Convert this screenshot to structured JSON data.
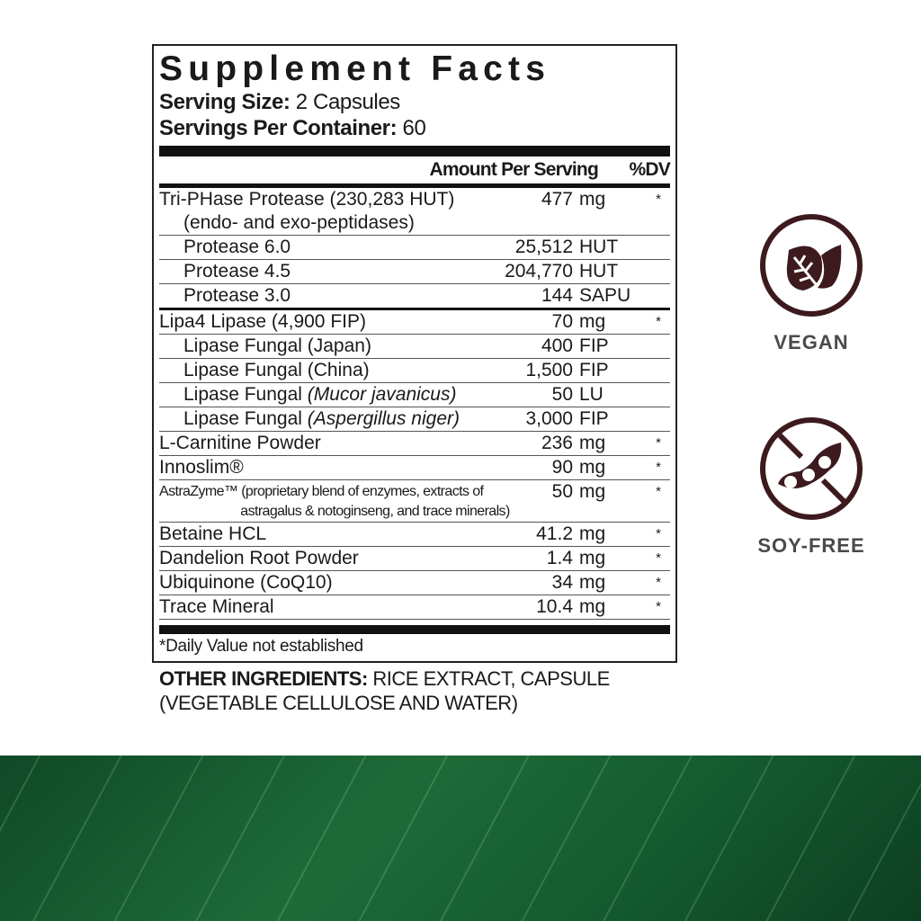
{
  "label": {
    "title": "Supplement Facts",
    "serving_size_label": "Serving Size:",
    "serving_size_value": "2 Capsules",
    "servings_per_container_label": "Servings Per Container:",
    "servings_per_container_value": "60",
    "header_amount": "Amount Per Serving",
    "header_dv": "%DV",
    "rows": [
      {
        "name": "Tri-PHase Protease (230,283 HUT)",
        "sub": "(endo- and exo-peptidases)",
        "value": "477",
        "unit": "mg",
        "dv": "*"
      },
      {
        "name": "Protease 6.0",
        "value": "25,512",
        "unit": "HUT",
        "dv": ""
      },
      {
        "name": "Protease 4.5",
        "value": "204,770",
        "unit": "HUT",
        "dv": ""
      },
      {
        "name": "Protease 3.0",
        "value": "144",
        "unit": "SAPU",
        "dv": ""
      },
      {
        "name": "Lipa4 Lipase (4,900 FIP)",
        "value": "70",
        "unit": "mg",
        "dv": "*"
      },
      {
        "name": "Lipase Fungal (Japan)",
        "value": "400",
        "unit": "FIP",
        "dv": ""
      },
      {
        "name": "Lipase Fungal (China)",
        "value": "1,500",
        "unit": "FIP",
        "dv": ""
      },
      {
        "name": "Lipase Fungal ",
        "italic": "(Mucor javanicus)",
        "value": "50",
        "unit": "LU",
        "dv": ""
      },
      {
        "name": "Lipase Fungal ",
        "italic": "(Aspergillus niger)",
        "value": "3,000",
        "unit": "FIP",
        "dv": ""
      },
      {
        "name": "L-Carnitine Powder",
        "value": "236",
        "unit": "mg",
        "dv": "*"
      },
      {
        "name": "Innoslim®",
        "value": "90",
        "unit": "mg",
        "dv": "*"
      },
      {
        "name": "AstraZyme™ (proprietary blend of enzymes, extracts of",
        "sub": "astragalus & notoginseng, and trace minerals)",
        "value": "50",
        "unit": "mg",
        "dv": "*"
      },
      {
        "name": "Betaine HCL",
        "value": "41.2",
        "unit": "mg",
        "dv": "*"
      },
      {
        "name": "Dandelion Root Powder",
        "value": "1.4",
        "unit": "mg",
        "dv": "*"
      },
      {
        "name": "Ubiquinone (CoQ10)",
        "value": "34",
        "unit": "mg",
        "dv": "*"
      },
      {
        "name": "Trace Mineral",
        "value": "10.4",
        "unit": "mg",
        "dv": "*"
      }
    ],
    "footnote": "*Daily Value not established"
  },
  "other_ingredients": {
    "label": "OTHER INGREDIENTS:",
    "text": " RICE EXTRACT, CAPSULE (VEGETABLE CELLULOSE AND WATER)"
  },
  "badges": [
    {
      "label": "VEGAN",
      "icon": "leaf-icon"
    },
    {
      "label": "SOY-FREE",
      "icon": "no-soy-icon"
    }
  ],
  "colors": {
    "icon": "#3d1a1e",
    "badge_text": "#4a4a4a",
    "band": "#1e6b38"
  }
}
